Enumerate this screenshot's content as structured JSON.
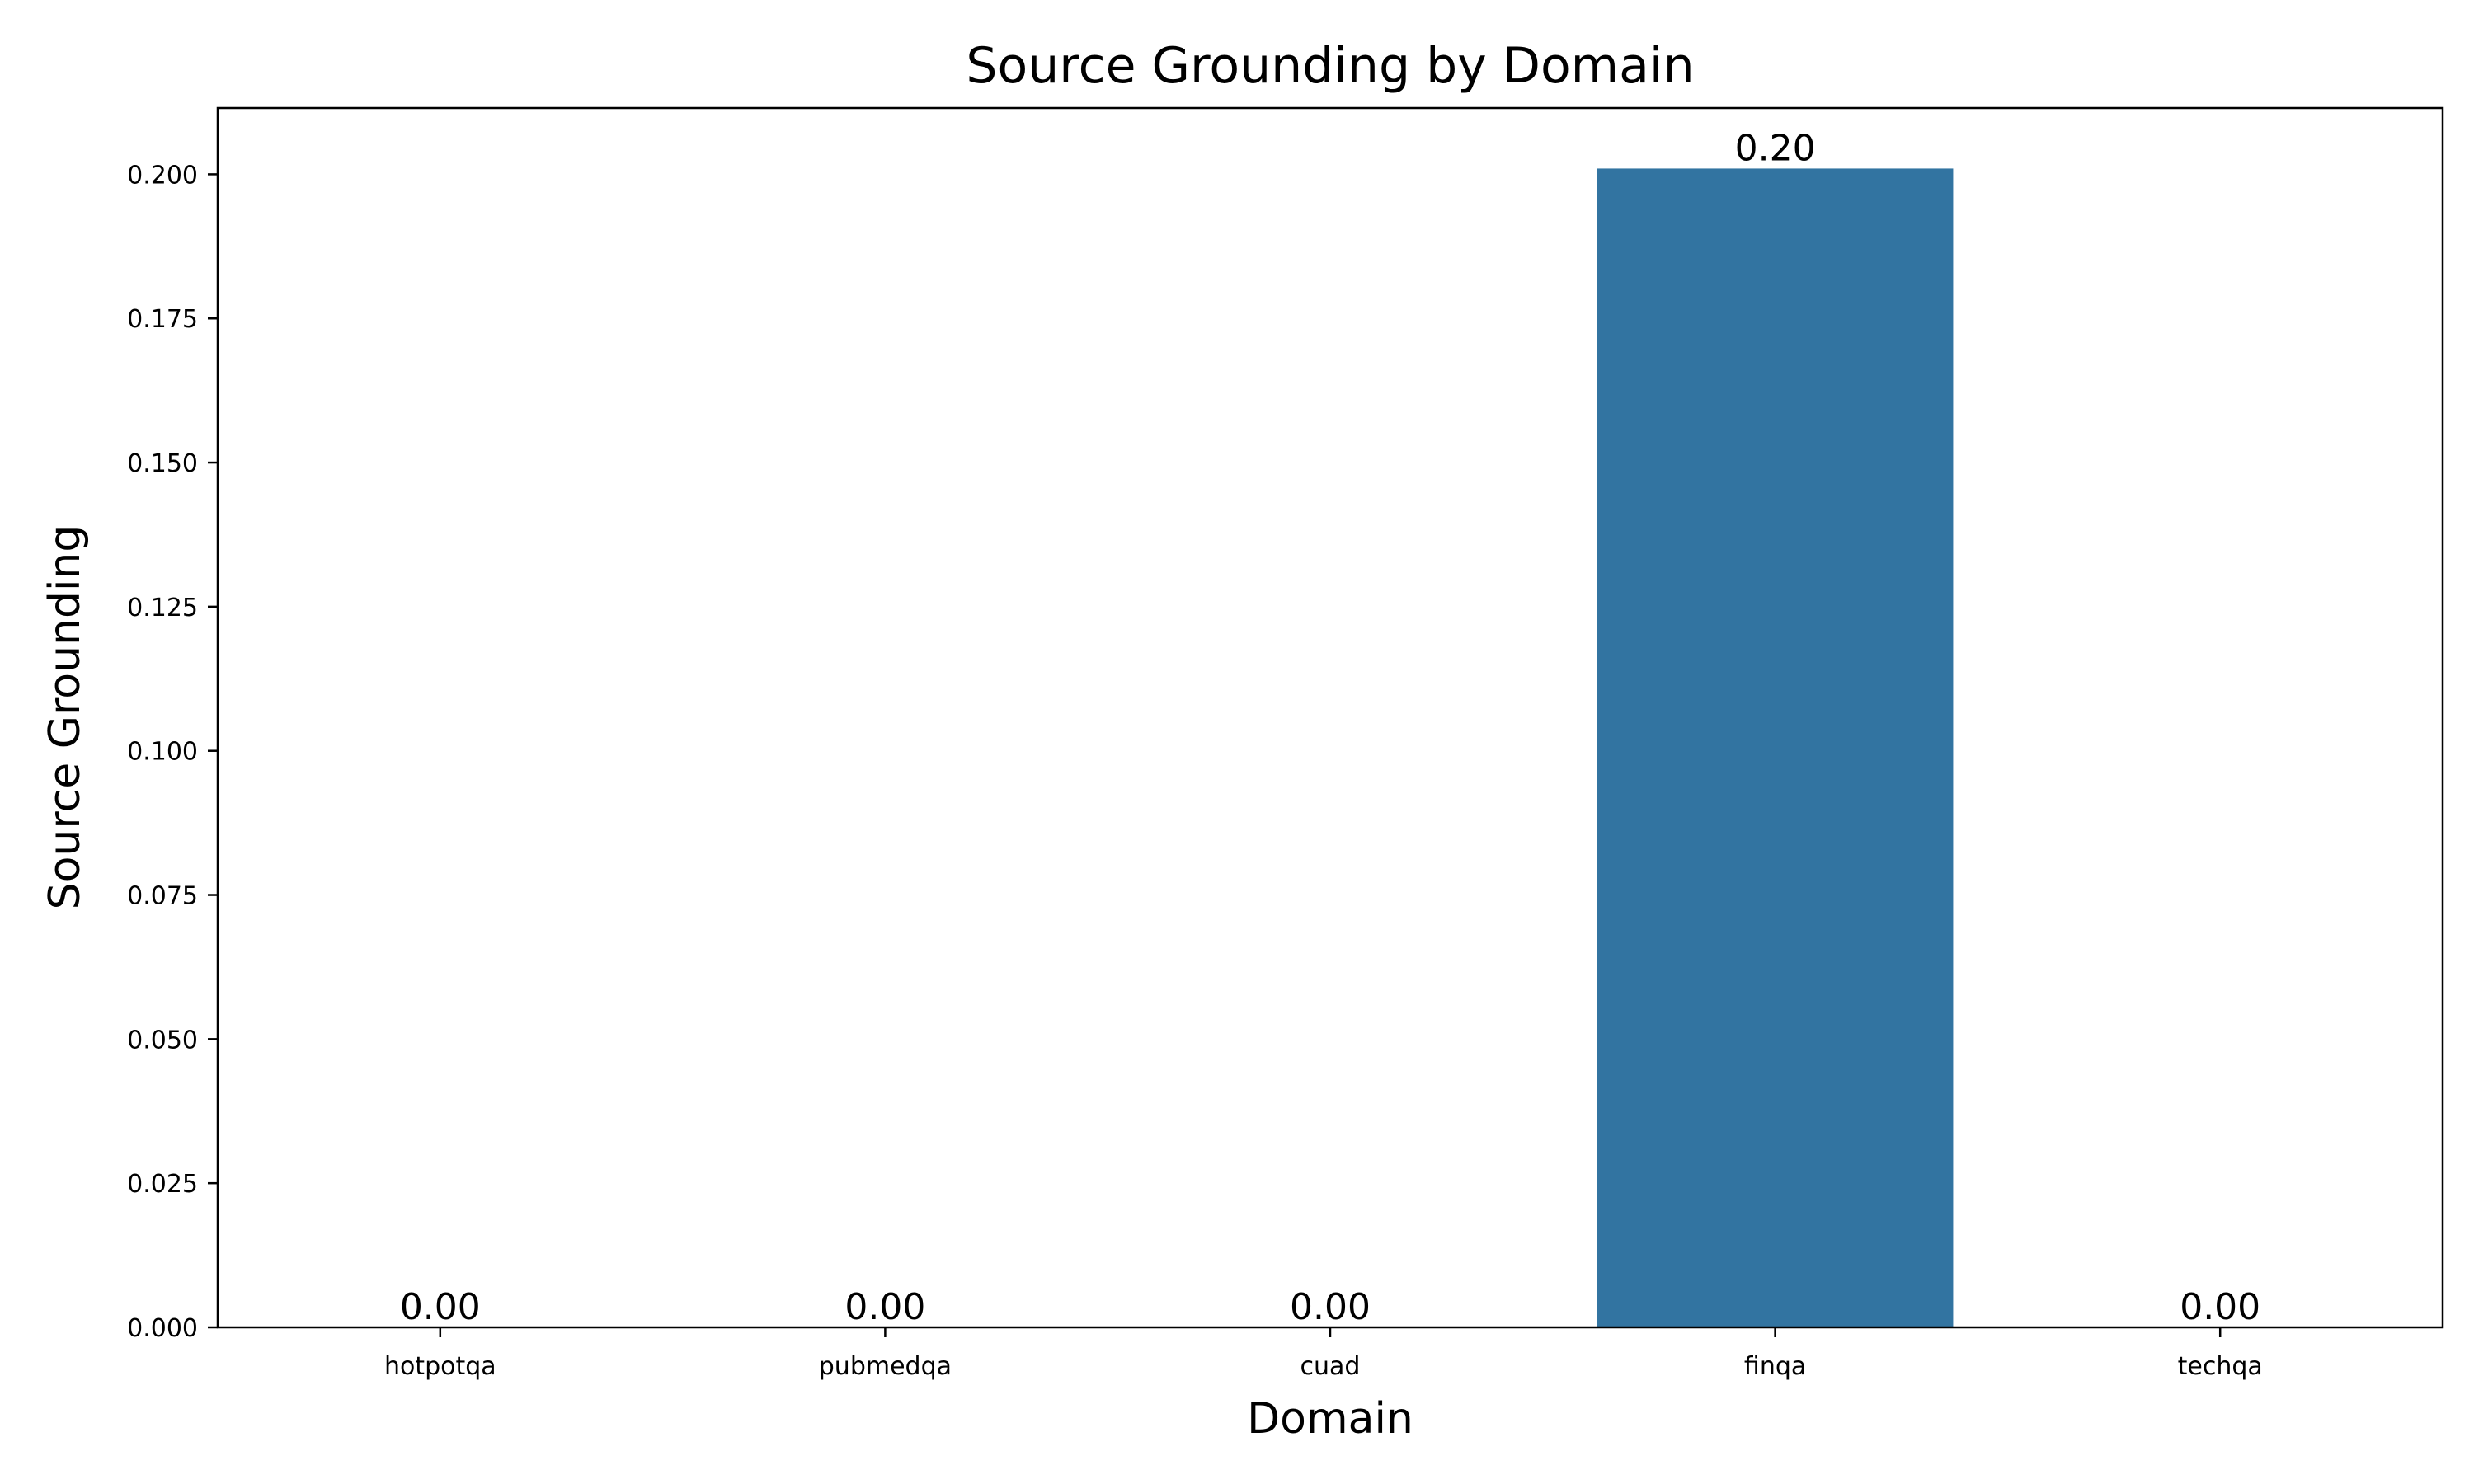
{
  "chart_data": {
    "type": "bar",
    "title": "Source Grounding by Domain",
    "xlabel": "Domain",
    "ylabel": "Source Grounding",
    "categories": [
      "hotpotqa",
      "pubmedqa",
      "cuad",
      "finqa",
      "techqa"
    ],
    "values": [
      0.0,
      0.0,
      0.0,
      0.201,
      0.0
    ],
    "data_labels": [
      "0.00",
      "0.00",
      "0.00",
      "0.20",
      "0.00"
    ],
    "ylim": [
      0,
      0.2115
    ],
    "yticks": [
      0.0,
      0.025,
      0.05,
      0.075,
      0.1,
      0.125,
      0.15,
      0.175,
      0.2
    ],
    "ytick_labels": [
      "0.000",
      "0.025",
      "0.050",
      "0.075",
      "0.100",
      "0.125",
      "0.150",
      "0.175",
      "0.200"
    ],
    "bar_color": "#3274a1",
    "grid": false,
    "legend": "none"
  }
}
